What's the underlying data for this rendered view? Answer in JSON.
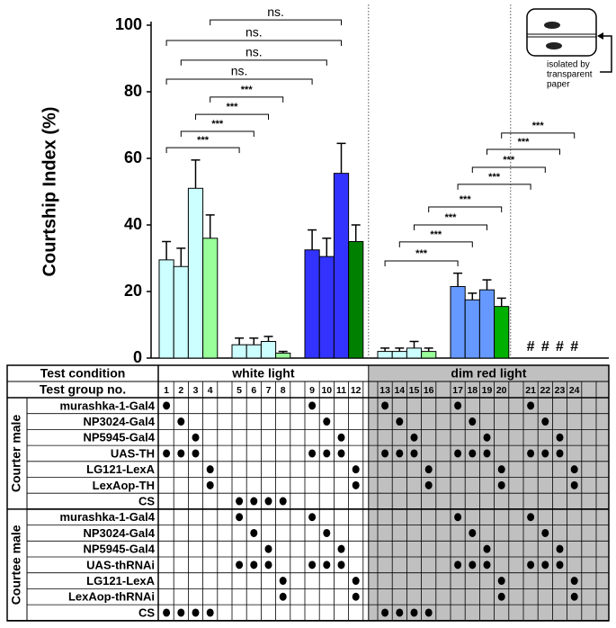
{
  "chart_data": {
    "type": "bar",
    "y_label": "Courtship Index (%)",
    "categories": [
      "1",
      "2",
      "3",
      "4",
      "5",
      "6",
      "7",
      "8",
      "9",
      "10",
      "11",
      "12",
      "13",
      "14",
      "15",
      "16",
      "17",
      "18",
      "19",
      "20",
      "21",
      "22",
      "23",
      "24"
    ],
    "values": [
      29.5,
      27.5,
      51,
      36,
      4,
      4,
      5,
      1.5,
      32.5,
      30.5,
      55.5,
      35,
      2,
      2,
      3,
      2,
      21.5,
      17.5,
      20.5,
      15.5,
      null,
      null,
      null,
      null
    ],
    "errors": [
      5.5,
      5.5,
      8.5,
      7,
      2,
      2,
      1.5,
      0.5,
      6,
      5.5,
      9,
      5,
      1,
      1,
      2,
      1,
      4,
      2,
      3,
      2.5,
      null,
      null,
      null,
      null
    ],
    "colors": [
      "#ccffff",
      "#ccffff",
      "#ccffff",
      "#99ff99",
      "#ccffff",
      "#ccffff",
      "#ccffff",
      "#99ff99",
      "#3333ff",
      "#3333ff",
      "#3333ff",
      "#008000",
      "#ccffff",
      "#ccffff",
      "#ccffff",
      "#99ff99",
      "#6699ff",
      "#6699ff",
      "#6699ff",
      "#00b000",
      "#ccffff",
      "#ccffff",
      "#ccffff",
      "#99ff99"
    ],
    "ylim": [
      0,
      100
    ],
    "yticks": [
      0,
      20,
      40,
      60,
      80,
      100
    ],
    "no_data": {
      "groups": [
        21,
        22,
        23,
        24
      ],
      "label": "#"
    },
    "brackets": [
      {
        "from": 4,
        "to": 11,
        "y": 101.6,
        "label": "ns."
      },
      {
        "from": 1,
        "to": 11,
        "y": 95.4,
        "label": "ns."
      },
      {
        "from": 2,
        "to": 10,
        "y": 89.5,
        "label": "ns."
      },
      {
        "from": 1,
        "to": 9,
        "y": 83.8,
        "label": "ns."
      },
      {
        "from": 4,
        "to": 8,
        "y": 78.4,
        "label": "***"
      },
      {
        "from": 3,
        "to": 7,
        "y": 73.2,
        "label": "***"
      },
      {
        "from": 2,
        "to": 6,
        "y": 68.1,
        "label": "***"
      },
      {
        "from": 1,
        "to": 5,
        "y": 63.2,
        "label": "***"
      },
      {
        "from": 13,
        "to": 17,
        "y": 29.2,
        "label": "***"
      },
      {
        "from": 14,
        "to": 18,
        "y": 34.9,
        "label": "***"
      },
      {
        "from": 15,
        "to": 19,
        "y": 40,
        "label": "***"
      },
      {
        "from": 16,
        "to": 20,
        "y": 45.4,
        "label": "***"
      },
      {
        "from": 17,
        "to": 21,
        "y": 52.2,
        "label": "***"
      },
      {
        "from": 18,
        "to": 22,
        "y": 57.3,
        "label": "***"
      },
      {
        "from": 19,
        "to": 23,
        "y": 62.7,
        "label": "***"
      },
      {
        "from": 20,
        "to": 24,
        "y": 67.6,
        "label": "***"
      }
    ],
    "inset_label": [
      "isolated by",
      "transparent",
      "paper"
    ]
  },
  "table": {
    "header": [
      "Test condition",
      "white light",
      "dim red light"
    ],
    "group_label": "Test group no.",
    "sections": [
      {
        "title": "Courter male",
        "rows": [
          {
            "label": "murashka-1-Gal4",
            "groups": [
              1,
              9,
              13,
              17,
              21
            ]
          },
          {
            "label": "NP3024-Gal4",
            "groups": [
              2,
              10,
              14,
              18,
              22
            ]
          },
          {
            "label": "NP5945-Gal4",
            "groups": [
              3,
              11,
              15,
              19,
              23
            ]
          },
          {
            "label": "UAS-TH",
            "groups": [
              1,
              2,
              3,
              9,
              10,
              11,
              13,
              14,
              15,
              17,
              18,
              19,
              21,
              22,
              23
            ]
          },
          {
            "label": "LG121-LexA",
            "groups": [
              4,
              12,
              16,
              20,
              24
            ]
          },
          {
            "label": "LexAop-TH",
            "groups": [
              4,
              12,
              16,
              20,
              24
            ]
          },
          {
            "label": "CS",
            "groups": [
              5,
              6,
              7,
              8
            ]
          }
        ]
      },
      {
        "title": "Courtee male",
        "rows": [
          {
            "label": "murashka-1-Gal4",
            "groups": [
              5,
              9,
              17,
              21
            ]
          },
          {
            "label": "NP3024-Gal4",
            "groups": [
              6,
              10,
              18,
              22
            ]
          },
          {
            "label": "NP5945-Gal4",
            "groups": [
              7,
              11,
              19,
              23
            ]
          },
          {
            "label": "UAS-thRNAi",
            "groups": [
              5,
              6,
              7,
              9,
              10,
              11,
              17,
              18,
              19,
              21,
              22,
              23
            ]
          },
          {
            "label": "LG121-LexA",
            "groups": [
              8,
              12,
              20,
              24
            ]
          },
          {
            "label": "LexAop-thRNAi",
            "groups": [
              8,
              12,
              20,
              24
            ]
          },
          {
            "label": "CS",
            "groups": [
              1,
              2,
              3,
              4,
              13,
              14,
              15,
              16
            ]
          }
        ]
      }
    ]
  }
}
